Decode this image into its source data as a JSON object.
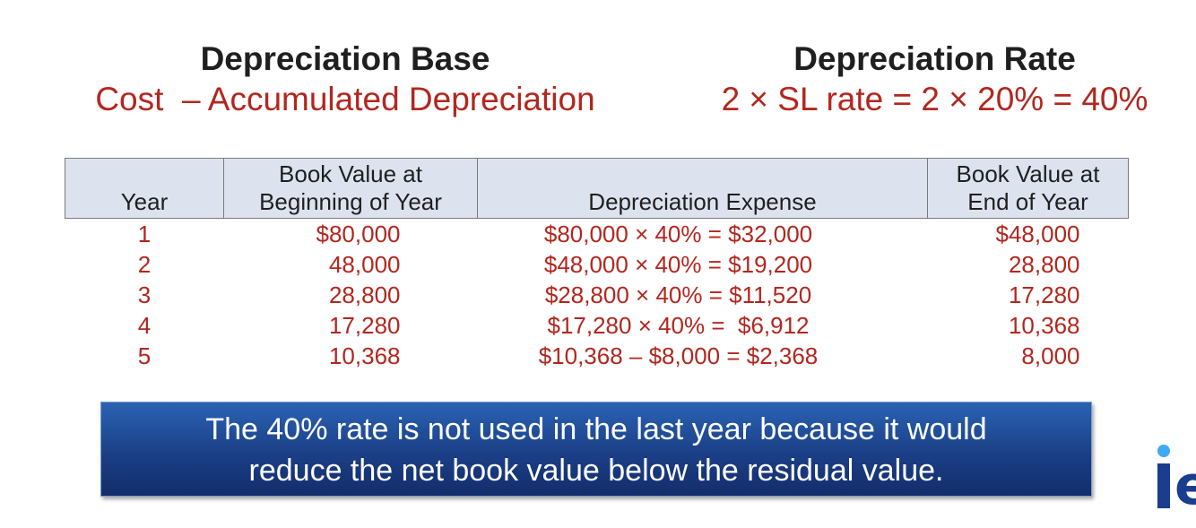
{
  "header": {
    "base_title": "Depreciation Base",
    "base_formula": "Cost  – Accumulated Depreciation",
    "rate_title": "Depreciation Rate",
    "rate_formula": "2 × SL rate = 2 × 20% = 40%"
  },
  "table": {
    "columns": {
      "year": "Year",
      "begin_line1": "Book Value at",
      "begin_line2": "Beginning of Year",
      "expense": "Depreciation Expense",
      "end_line1": "Book Value at",
      "end_line2": "End of Year"
    },
    "rows": [
      {
        "year": "1",
        "begin": "$80,000",
        "expense": "$80,000 × 40% = $32,000",
        "end": "$48,000"
      },
      {
        "year": "2",
        "begin": "48,000",
        "expense": "$48,000 × 40% = $19,200",
        "end": "28,800"
      },
      {
        "year": "3",
        "begin": "28,800",
        "expense": "$28,800 × 40% = $11,520",
        "end": "17,280"
      },
      {
        "year": "4",
        "begin": "17,280",
        "expense": "$17,280 × 40% =  $6,912",
        "end": "10,368"
      },
      {
        "year": "5",
        "begin": "10,368",
        "expense": "$10,368 – $8,000 = $2,368",
        "end": "8,000"
      }
    ]
  },
  "note": {
    "line1": "The 40% rate is not used in the last year because it would",
    "line2": "reduce the net book value below the residual value."
  },
  "colors": {
    "accent_red": "#b3261e",
    "header_fill": "#dde3ee",
    "note_blue": "#1b3f86"
  },
  "logo": {
    "icon": "ie-logo-icon",
    "text": "ie"
  }
}
